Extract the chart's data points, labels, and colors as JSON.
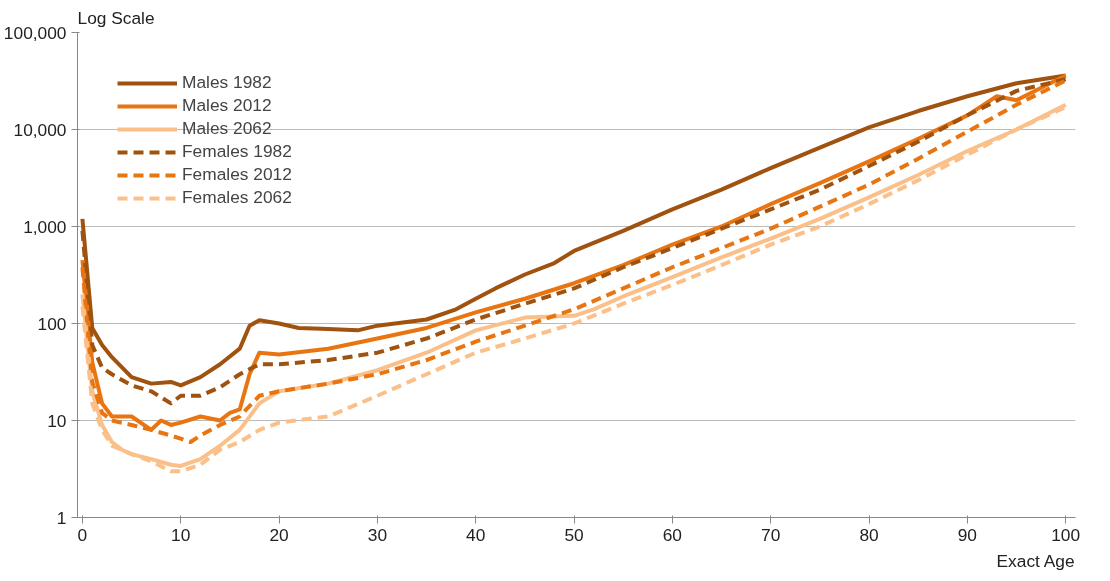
{
  "chart_data": {
    "type": "line",
    "ylabel": "Log Scale",
    "xlabel": "Exact Age",
    "log": true,
    "grid": "y",
    "legend": "top left",
    "marker": "none",
    "xlim": [
      -0.5,
      101
    ],
    "xticks": [
      0,
      10,
      20,
      30,
      40,
      50,
      60,
      70,
      80,
      90,
      100
    ],
    "ylim": [
      1,
      100000
    ],
    "yticks": [
      {
        "value": 1,
        "label": "1"
      },
      {
        "value": 10,
        "label": "10"
      },
      {
        "value": 100,
        "label": "100"
      },
      {
        "value": 1000,
        "label": "1,000"
      },
      {
        "value": 10000,
        "label": "10,000"
      },
      {
        "value": 100000,
        "label": "100,000"
      }
    ],
    "series": [
      {
        "name": "Males 1982",
        "color": "#a0520f",
        "line_style": "solid",
        "x": [
          0,
          1,
          2,
          3,
          5,
          7,
          9,
          10,
          12,
          14,
          16,
          17,
          18,
          20,
          22,
          25,
          28,
          30,
          35,
          38,
          40,
          42,
          45,
          48,
          50,
          55,
          60,
          65,
          70,
          75,
          80,
          85,
          90,
          95,
          100
        ],
        "values": [
          1200,
          90,
          60,
          45,
          28,
          24,
          25,
          23,
          28,
          38,
          55,
          95,
          108,
          100,
          90,
          88,
          85,
          95,
          110,
          140,
          180,
          230,
          320,
          420,
          560,
          900,
          1500,
          2400,
          4000,
          6500,
          10500,
          15500,
          22000,
          30000,
          36000
        ]
      },
      {
        "name": "Males 2012",
        "color": "#e87511",
        "line_style": "solid",
        "x": [
          0,
          1,
          2,
          3,
          5,
          7,
          8,
          9,
          10,
          12,
          14,
          15,
          16,
          17,
          18,
          20,
          25,
          30,
          35,
          40,
          45,
          50,
          55,
          60,
          65,
          70,
          75,
          80,
          85,
          90,
          93,
          95,
          100
        ],
        "values": [
          450,
          40,
          15,
          11,
          11,
          8,
          10,
          9,
          9.5,
          11,
          10,
          12,
          13,
          30,
          50,
          48,
          55,
          70,
          90,
          130,
          180,
          260,
          400,
          650,
          1000,
          1700,
          2800,
          4700,
          8000,
          14000,
          22000,
          20000,
          36000
        ]
      },
      {
        "name": "Males 2062",
        "color": "#fbc08a",
        "line_style": "solid",
        "x": [
          0,
          1,
          2,
          3,
          4,
          5,
          7,
          9,
          10,
          12,
          14,
          16,
          18,
          20,
          25,
          30,
          35,
          40,
          45,
          50,
          52,
          55,
          60,
          65,
          70,
          75,
          80,
          85,
          90,
          95,
          100
        ],
        "values": [
          200,
          20,
          9,
          6,
          5,
          4.5,
          4,
          3.5,
          3.4,
          4,
          5.5,
          8,
          15,
          20,
          24,
          33,
          50,
          85,
          115,
          120,
          140,
          190,
          300,
          480,
          750,
          1200,
          2000,
          3400,
          6000,
          10000,
          18000
        ]
      },
      {
        "name": "Females 1982",
        "color": "#a0520f",
        "line_style": "dashed",
        "x": [
          0,
          1,
          2,
          3,
          5,
          7,
          9,
          10,
          12,
          14,
          16,
          18,
          20,
          25,
          30,
          35,
          40,
          45,
          50,
          55,
          60,
          65,
          70,
          75,
          80,
          85,
          90,
          95,
          100
        ],
        "values": [
          900,
          60,
          35,
          30,
          23,
          20,
          15,
          18,
          18,
          22,
          30,
          38,
          38,
          42,
          50,
          70,
          110,
          160,
          230,
          380,
          600,
          950,
          1500,
          2400,
          4200,
          7500,
          14000,
          25000,
          33000
        ]
      },
      {
        "name": "Females 2012",
        "color": "#e87511",
        "line_style": "dashed",
        "x": [
          0,
          1,
          2,
          3,
          5,
          7,
          9,
          10,
          11,
          12,
          14,
          16,
          18,
          20,
          25,
          30,
          35,
          40,
          45,
          50,
          55,
          60,
          65,
          70,
          75,
          80,
          85,
          90,
          95,
          100
        ],
        "values": [
          380,
          25,
          12,
          10,
          9,
          8,
          7,
          6.5,
          6,
          7,
          9,
          11,
          18,
          20,
          24,
          30,
          42,
          65,
          95,
          140,
          230,
          380,
          600,
          950,
          1600,
          2700,
          5000,
          9500,
          18000,
          32000
        ]
      },
      {
        "name": "Females 2062",
        "color": "#fbc08a",
        "line_style": "dashed",
        "x": [
          0,
          1,
          2,
          3,
          5,
          7,
          9,
          10,
          12,
          14,
          16,
          18,
          20,
          25,
          30,
          35,
          40,
          45,
          50,
          55,
          60,
          65,
          70,
          75,
          80,
          85,
          90,
          95,
          100
        ],
        "values": [
          150,
          15,
          8,
          5.5,
          4.5,
          3.8,
          3,
          3,
          3.5,
          5,
          6,
          8,
          9.5,
          11,
          18,
          30,
          50,
          70,
          100,
          160,
          250,
          400,
          650,
          1000,
          1700,
          3000,
          5500,
          10000,
          17000
        ]
      }
    ]
  }
}
